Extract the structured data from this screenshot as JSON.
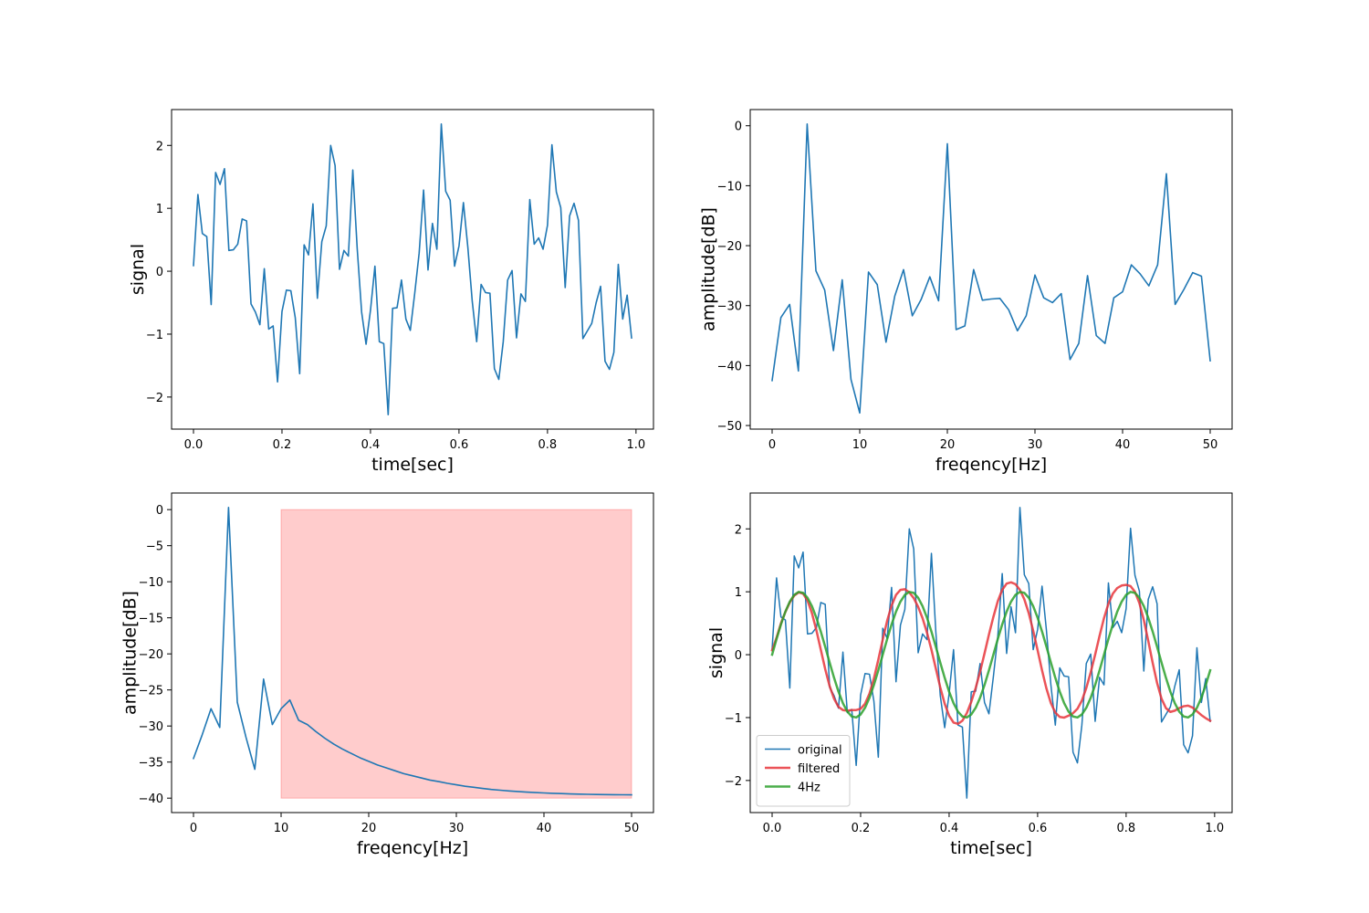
{
  "chart_data": [
    {
      "id": "time_signal",
      "type": "line",
      "xlabel": "time[sec]",
      "ylabel": "signal",
      "xlim": [
        -0.0495,
        1.0395
      ],
      "ylim": [
        -2.51,
        2.57
      ],
      "xticks": [
        0.0,
        0.2,
        0.4,
        0.6,
        0.8,
        1.0
      ],
      "xticklabels": [
        "0.0",
        "0.2",
        "0.4",
        "0.6",
        "0.8",
        "1.0"
      ],
      "yticks": [
        -2,
        -1,
        0,
        1,
        2
      ],
      "yticklabels": [
        "−2",
        "−1",
        "0",
        "1",
        "2"
      ],
      "series": [
        {
          "color": "#1f77b4",
          "x_start": 0.0,
          "x_step": 0.01,
          "values": [
            0.09,
            1.22,
            0.6,
            0.55,
            -0.53,
            1.57,
            1.38,
            1.63,
            0.33,
            0.34,
            0.43,
            0.83,
            0.8,
            -0.52,
            -0.65,
            -0.85,
            0.04,
            -0.92,
            -0.87,
            -1.76,
            -0.64,
            -0.3,
            -0.31,
            -0.74,
            -1.63,
            0.42,
            0.26,
            1.07,
            -0.43,
            0.47,
            0.72,
            2.0,
            1.68,
            0.03,
            0.33,
            0.24,
            1.61,
            0.36,
            -0.65,
            -1.16,
            -0.62,
            0.08,
            -1.12,
            -1.15,
            -2.28,
            -0.59,
            -0.58,
            -0.14,
            -0.76,
            -0.94,
            -0.35,
            0.29,
            1.29,
            0.02,
            0.76,
            0.35,
            2.34,
            1.27,
            1.13,
            0.08,
            0.4,
            1.09,
            0.38,
            -0.48,
            -1.12,
            -0.21,
            -0.34,
            -0.35,
            -1.55,
            -1.72,
            -1.12,
            -0.14,
            0.01,
            -1.06,
            -0.36,
            -0.48,
            1.14,
            0.43,
            0.53,
            0.35,
            0.73,
            2.01,
            1.26,
            1.01,
            -0.26,
            0.88,
            1.08,
            0.81,
            -1.07,
            -0.95,
            -0.83,
            -0.5,
            -0.24,
            -1.43,
            -1.56,
            -1.29,
            0.11,
            -0.76,
            -0.38,
            -1.06
          ]
        }
      ]
    },
    {
      "id": "spectrum",
      "type": "line",
      "xlabel": "freqency[Hz]",
      "ylabel": "amplitude[dB]",
      "xlim": [
        -2.5,
        52.5
      ],
      "ylim": [
        -50.6,
        2.7
      ],
      "xticks": [
        0,
        10,
        20,
        30,
        40,
        50
      ],
      "xticklabels": [
        "0",
        "10",
        "20",
        "30",
        "40",
        "50"
      ],
      "yticks": [
        -50,
        -40,
        -30,
        -20,
        -10,
        0
      ],
      "yticklabels": [
        "−50",
        "−40",
        "−30",
        "−20",
        "−10",
        "0"
      ],
      "series": [
        {
          "color": "#1f77b4",
          "x_start": 0,
          "x_step": 1,
          "values": [
            -42.5,
            -32.0,
            -29.8,
            -40.9,
            0.3,
            -24.2,
            -27.4,
            -37.5,
            -25.7,
            -42.3,
            -47.9,
            -24.4,
            -26.5,
            -36.1,
            -28.4,
            -24.0,
            -31.7,
            -29.0,
            -25.2,
            -29.2,
            -3.0,
            -34.0,
            -33.4,
            -24.0,
            -29.1,
            -28.9,
            -28.8,
            -30.7,
            -34.2,
            -31.7,
            -24.9,
            -28.7,
            -29.5,
            -28.0,
            -39.0,
            -36.3,
            -25.0,
            -35.0,
            -36.3,
            -28.7,
            -27.7,
            -23.2,
            -24.7,
            -26.7,
            -23.2,
            -8.0,
            -29.8,
            -27.3,
            -24.5,
            -25.1,
            -39.2
          ]
        }
      ]
    },
    {
      "id": "filtered_spectrum",
      "type": "line",
      "xlabel": "freqency[Hz]",
      "ylabel": "amplitude[dB]",
      "xlim": [
        -2.5,
        52.5
      ],
      "ylim": [
        -42.0,
        2.3
      ],
      "xticks": [
        0,
        10,
        20,
        30,
        40,
        50
      ],
      "xticklabels": [
        "0",
        "10",
        "20",
        "30",
        "40",
        "50"
      ],
      "yticks": [
        -40,
        -35,
        -30,
        -25,
        -20,
        -15,
        -10,
        -5,
        0
      ],
      "yticklabels": [
        "−40",
        "−35",
        "−30",
        "−25",
        "−20",
        "−15",
        "−10",
        "−5",
        "0"
      ],
      "shaded_region": {
        "x": [
          10,
          50
        ],
        "y": [
          -40,
          0
        ],
        "color": "#ff0000",
        "alpha": 0.2
      },
      "series": [
        {
          "color": "#1f77b4",
          "x_start": 0,
          "x_step": 1,
          "values": [
            -34.5,
            -31.2,
            -27.6,
            -30.2,
            0.3,
            -26.7,
            -31.6,
            -36.0,
            -23.5,
            -29.8,
            -27.6,
            -26.4,
            -29.2,
            -29.8,
            -30.8,
            -31.7,
            -32.5,
            -33.2,
            -33.8,
            -34.4,
            -34.9,
            -35.4,
            -35.8,
            -36.2,
            -36.6,
            -36.9,
            -37.2,
            -37.5,
            -37.7,
            -37.95,
            -38.15,
            -38.35,
            -38.5,
            -38.65,
            -38.8,
            -38.9,
            -39.0,
            -39.08,
            -39.16,
            -39.22,
            -39.28,
            -39.33,
            -39.37,
            -39.41,
            -39.44,
            -39.47,
            -39.49,
            -39.51,
            -39.52,
            -39.53,
            -39.54
          ]
        }
      ]
    },
    {
      "id": "comparison",
      "type": "line",
      "xlabel": "time[sec]",
      "ylabel": "signal",
      "xlim": [
        -0.0495,
        1.0395
      ],
      "ylim": [
        -2.51,
        2.57
      ],
      "xticks": [
        0.0,
        0.2,
        0.4,
        0.6,
        0.8,
        1.0
      ],
      "xticklabels": [
        "0.0",
        "0.2",
        "0.4",
        "0.6",
        "0.8",
        "1.0"
      ],
      "yticks": [
        -2,
        -1,
        0,
        1,
        2
      ],
      "yticklabels": [
        "−2",
        "−1",
        "0",
        "1",
        "2"
      ],
      "legend": {
        "position": "lower left",
        "entries": [
          "original",
          "filtered",
          "4Hz"
        ]
      },
      "series": [
        {
          "name": "original",
          "color": "#1f77b4",
          "width": 1.5,
          "alpha": 1,
          "x_start": 0.0,
          "x_step": 0.01,
          "values": [
            0.09,
            1.22,
            0.6,
            0.55,
            -0.53,
            1.57,
            1.38,
            1.63,
            0.33,
            0.34,
            0.43,
            0.83,
            0.8,
            -0.52,
            -0.65,
            -0.85,
            0.04,
            -0.92,
            -0.87,
            -1.76,
            -0.64,
            -0.3,
            -0.31,
            -0.74,
            -1.63,
            0.42,
            0.26,
            1.07,
            -0.43,
            0.47,
            0.72,
            2.0,
            1.68,
            0.03,
            0.33,
            0.24,
            1.61,
            0.36,
            -0.65,
            -1.16,
            -0.62,
            0.08,
            -1.12,
            -1.15,
            -2.28,
            -0.59,
            -0.58,
            -0.14,
            -0.76,
            -0.94,
            -0.35,
            0.29,
            1.29,
            0.02,
            0.76,
            0.35,
            2.34,
            1.27,
            1.13,
            0.08,
            0.4,
            1.09,
            0.38,
            -0.48,
            -1.12,
            -0.21,
            -0.34,
            -0.35,
            -1.55,
            -1.72,
            -1.12,
            -0.14,
            0.01,
            -1.06,
            -0.36,
            -0.48,
            1.14,
            0.43,
            0.53,
            0.35,
            0.73,
            2.01,
            1.26,
            1.01,
            -0.26,
            0.88,
            1.08,
            0.81,
            -1.07,
            -0.95,
            -0.83,
            -0.5,
            -0.24,
            -1.43,
            -1.56,
            -1.29,
            0.11,
            -0.76,
            -0.38,
            -1.06
          ]
        },
        {
          "name": "filtered",
          "color": "#e8353b",
          "width": 2.5,
          "alpha": 0.85,
          "x_start": 0.0,
          "x_step": 0.01,
          "values": [
            0.07,
            0.27,
            0.5,
            0.68,
            0.83,
            0.94,
            0.99,
            0.97,
            0.86,
            0.66,
            0.39,
            0.08,
            -0.23,
            -0.5,
            -0.7,
            -0.83,
            -0.88,
            -0.89,
            -0.88,
            -0.88,
            -0.86,
            -0.78,
            -0.62,
            -0.38,
            -0.08,
            0.24,
            0.54,
            0.78,
            0.95,
            1.03,
            1.04,
            0.99,
            0.9,
            0.76,
            0.58,
            0.35,
            0.08,
            -0.22,
            -0.52,
            -0.78,
            -0.97,
            -1.08,
            -1.1,
            -1.05,
            -0.93,
            -0.75,
            -0.53,
            -0.27,
            0.02,
            0.32,
            0.6,
            0.85,
            1.03,
            1.13,
            1.15,
            1.12,
            1.03,
            0.88,
            0.66,
            0.38,
            0.07,
            -0.25,
            -0.54,
            -0.77,
            -0.92,
            -0.99,
            -1.0,
            -0.97,
            -0.93,
            -0.86,
            -0.73,
            -0.53,
            -0.28,
            0.0,
            0.3,
            0.58,
            0.81,
            0.97,
            1.06,
            1.1,
            1.11,
            1.09,
            1.0,
            0.82,
            0.55,
            0.22,
            -0.13,
            -0.45,
            -0.7,
            -0.85,
            -0.91,
            -0.89,
            -0.85,
            -0.82,
            -0.81,
            -0.84,
            -0.9,
            -0.96,
            -1.01,
            -1.05
          ]
        },
        {
          "name": "4Hz",
          "color": "#2ca02c",
          "width": 2.5,
          "alpha": 0.85,
          "x_start": 0.0,
          "x_step": 0.01,
          "function": "sin(2*pi*4*t)",
          "frequency_hz": 4,
          "amplitude": 1,
          "count": 100
        }
      ]
    }
  ]
}
